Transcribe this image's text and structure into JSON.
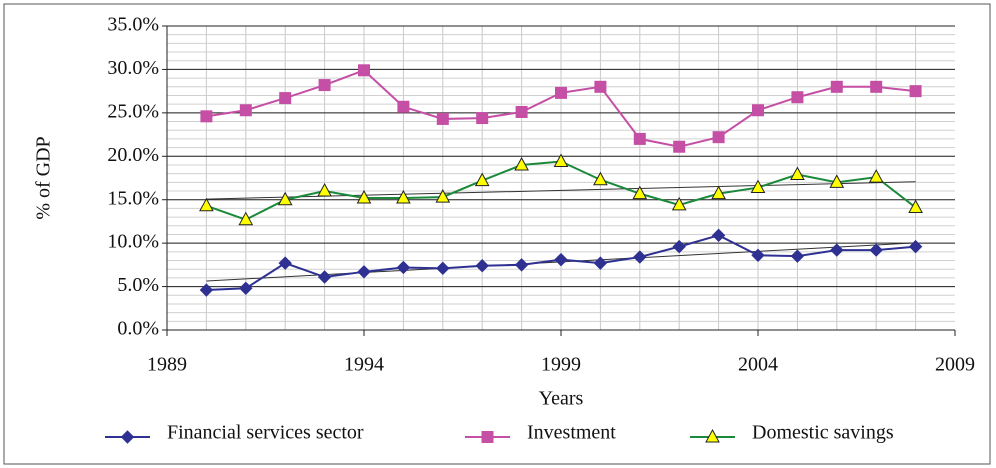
{
  "chart_data": {
    "type": "line",
    "x": [
      1990,
      1991,
      1992,
      1993,
      1994,
      1995,
      1996,
      1997,
      1998,
      1999,
      2000,
      2001,
      2002,
      2003,
      2004,
      2005,
      2006,
      2007,
      2008
    ],
    "xlim": [
      1989,
      2009
    ],
    "xticks": [
      1989,
      1994,
      1999,
      2004,
      2009
    ],
    "ylim": [
      0,
      35
    ],
    "yticks": [
      {
        "value": 0,
        "label": "0.0%"
      },
      {
        "value": 5,
        "label": "5.0%"
      },
      {
        "value": 10,
        "label": "10.0%"
      },
      {
        "value": 15,
        "label": "15.0%"
      },
      {
        "value": 20,
        "label": "20.0%"
      },
      {
        "value": 25,
        "label": "25.0%"
      },
      {
        "value": 30,
        "label": "30.0%"
      },
      {
        "value": 35,
        "label": "35.0%"
      }
    ],
    "xlabel": "Years",
    "ylabel": "% of GDP",
    "grid": true,
    "legend": "bottom",
    "series": [
      {
        "name": "Financial services sector",
        "color": "#2e3192",
        "marker": "diamond",
        "trendline": true,
        "values": [
          4.6,
          4.8,
          7.7,
          6.1,
          6.7,
          7.2,
          7.1,
          7.4,
          7.5,
          8.1,
          7.7,
          8.4,
          9.6,
          10.9,
          8.6,
          8.5,
          9.2,
          9.2,
          9.6
        ]
      },
      {
        "name": "Investment",
        "color": "#c54fa5",
        "marker": "square",
        "trendline": false,
        "values": [
          24.6,
          25.3,
          26.7,
          28.2,
          29.9,
          25.7,
          24.3,
          24.4,
          25.1,
          27.3,
          28.0,
          22.0,
          21.1,
          22.2,
          25.3,
          26.8,
          28.0,
          28.0,
          27.5
        ]
      },
      {
        "name": "Domestic savings",
        "color": "#1a8a3a",
        "marker": "triangle",
        "marker_fill": "#ffff00",
        "trendline": true,
        "values": [
          14.3,
          12.7,
          15.0,
          16.0,
          15.2,
          15.2,
          15.3,
          17.2,
          19.0,
          19.4,
          17.3,
          15.7,
          14.4,
          15.7,
          16.4,
          17.9,
          17.0,
          17.6,
          14.1
        ]
      }
    ]
  }
}
